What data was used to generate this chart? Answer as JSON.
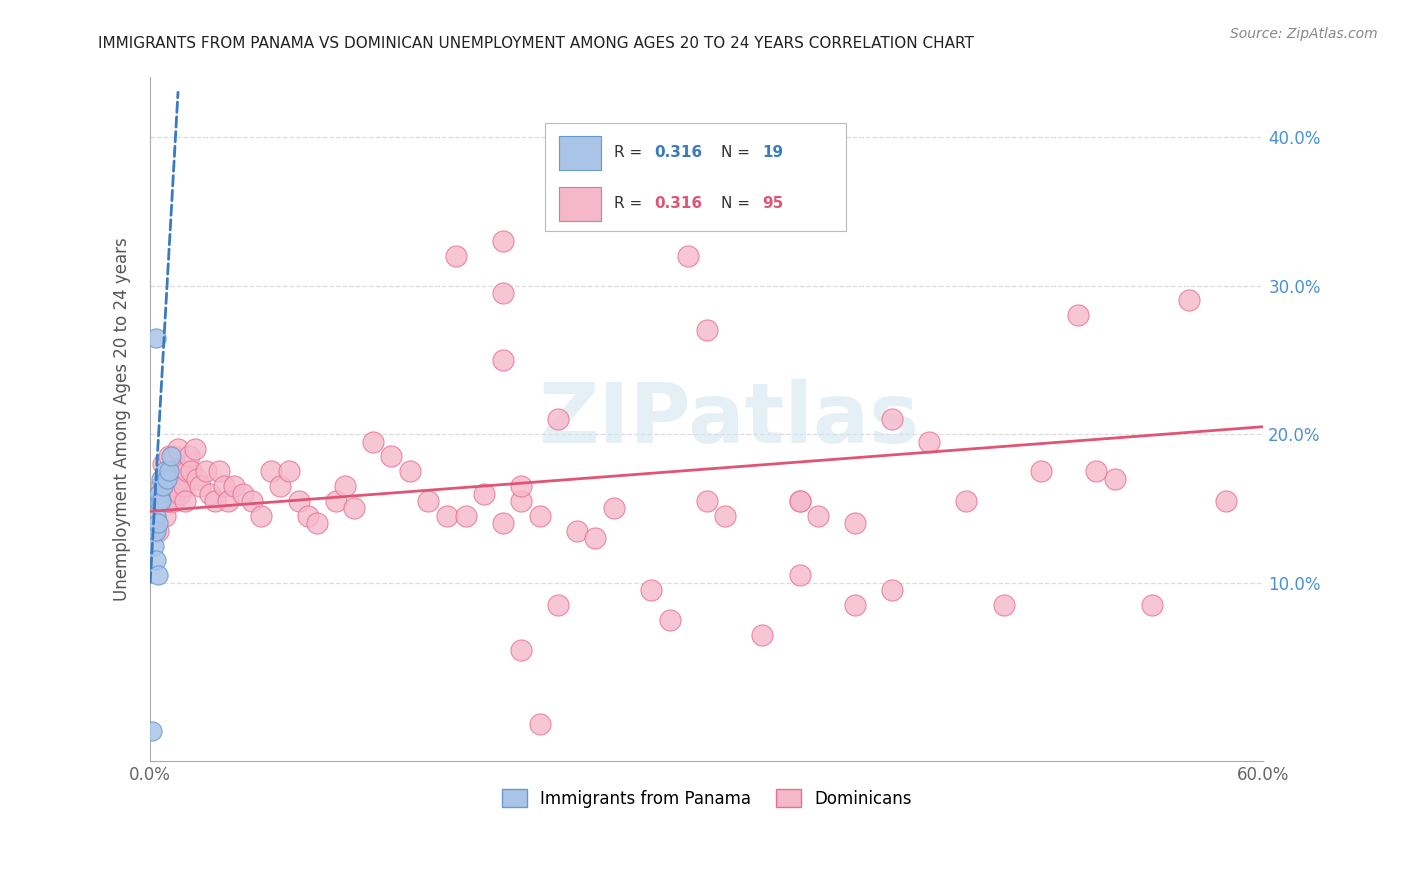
{
  "title": "IMMIGRANTS FROM PANAMA VS DOMINICAN UNEMPLOYMENT AMONG AGES 20 TO 24 YEARS CORRELATION CHART",
  "source": "Source: ZipAtlas.com",
  "ylabel": "Unemployment Among Ages 20 to 24 years",
  "xlim": [
    0.0,
    0.6
  ],
  "ylim": [
    -0.02,
    0.44
  ],
  "series1_color": "#aac4e8",
  "series2_color": "#f5b8cb",
  "series1_edge": "#6699cc",
  "series2_edge": "#e87090",
  "line1_color": "#3a7abf",
  "line2_color": "#e05575",
  "watermark": "ZIPatlas",
  "panama_x": [
    0.001,
    0.002,
    0.002,
    0.003,
    0.003,
    0.003,
    0.004,
    0.004,
    0.005,
    0.005,
    0.005,
    0.006,
    0.006,
    0.007,
    0.008,
    0.009,
    0.01,
    0.011,
    0.003
  ],
  "panama_y": [
    0.0,
    0.135,
    0.125,
    0.145,
    0.135,
    0.115,
    0.14,
    0.105,
    0.155,
    0.155,
    0.16,
    0.155,
    0.17,
    0.165,
    0.175,
    0.17,
    0.175,
    0.185,
    0.265
  ],
  "dominican_x": [
    0.004,
    0.005,
    0.006,
    0.007,
    0.007,
    0.008,
    0.008,
    0.009,
    0.009,
    0.01,
    0.01,
    0.011,
    0.012,
    0.013,
    0.013,
    0.014,
    0.014,
    0.015,
    0.016,
    0.016,
    0.017,
    0.018,
    0.019,
    0.02,
    0.021,
    0.022,
    0.024,
    0.025,
    0.027,
    0.03,
    0.032,
    0.035,
    0.037,
    0.04,
    0.042,
    0.045,
    0.05,
    0.055,
    0.06,
    0.065,
    0.07,
    0.075,
    0.08,
    0.085,
    0.09,
    0.1,
    0.105,
    0.11,
    0.12,
    0.13,
    0.14,
    0.15,
    0.16,
    0.17,
    0.18,
    0.19,
    0.2,
    0.21,
    0.22,
    0.23,
    0.24,
    0.25,
    0.27,
    0.28,
    0.3,
    0.31,
    0.33,
    0.35,
    0.36,
    0.38,
    0.4,
    0.42,
    0.44,
    0.46,
    0.48,
    0.5,
    0.52,
    0.54,
    0.56,
    0.58,
    0.29,
    0.19,
    0.2,
    0.21,
    0.165,
    0.19,
    0.22,
    0.35,
    0.4,
    0.51,
    0.3,
    0.38,
    0.19,
    0.2,
    0.35
  ],
  "dominican_y": [
    0.135,
    0.16,
    0.165,
    0.155,
    0.18,
    0.145,
    0.17,
    0.16,
    0.155,
    0.155,
    0.185,
    0.165,
    0.175,
    0.155,
    0.185,
    0.175,
    0.165,
    0.19,
    0.175,
    0.16,
    0.17,
    0.165,
    0.155,
    0.175,
    0.185,
    0.175,
    0.19,
    0.17,
    0.165,
    0.175,
    0.16,
    0.155,
    0.175,
    0.165,
    0.155,
    0.165,
    0.16,
    0.155,
    0.145,
    0.175,
    0.165,
    0.175,
    0.155,
    0.145,
    0.14,
    0.155,
    0.165,
    0.15,
    0.195,
    0.185,
    0.175,
    0.155,
    0.145,
    0.145,
    0.16,
    0.14,
    0.155,
    0.145,
    0.21,
    0.135,
    0.13,
    0.15,
    0.095,
    0.075,
    0.155,
    0.145,
    0.065,
    0.155,
    0.145,
    0.14,
    0.21,
    0.195,
    0.155,
    0.085,
    0.175,
    0.28,
    0.17,
    0.085,
    0.29,
    0.155,
    0.32,
    0.25,
    0.055,
    0.005,
    0.32,
    0.33,
    0.085,
    0.105,
    0.095,
    0.175,
    0.27,
    0.085,
    0.295,
    0.165,
    0.155
  ],
  "line1_x_start": 0.0,
  "line1_x_end": 0.015,
  "line2_x_start": 0.0,
  "line2_x_end": 0.6,
  "line1_y_start": 0.1,
  "line1_y_end": 0.43,
  "line2_y_start": 0.148,
  "line2_y_end": 0.205
}
